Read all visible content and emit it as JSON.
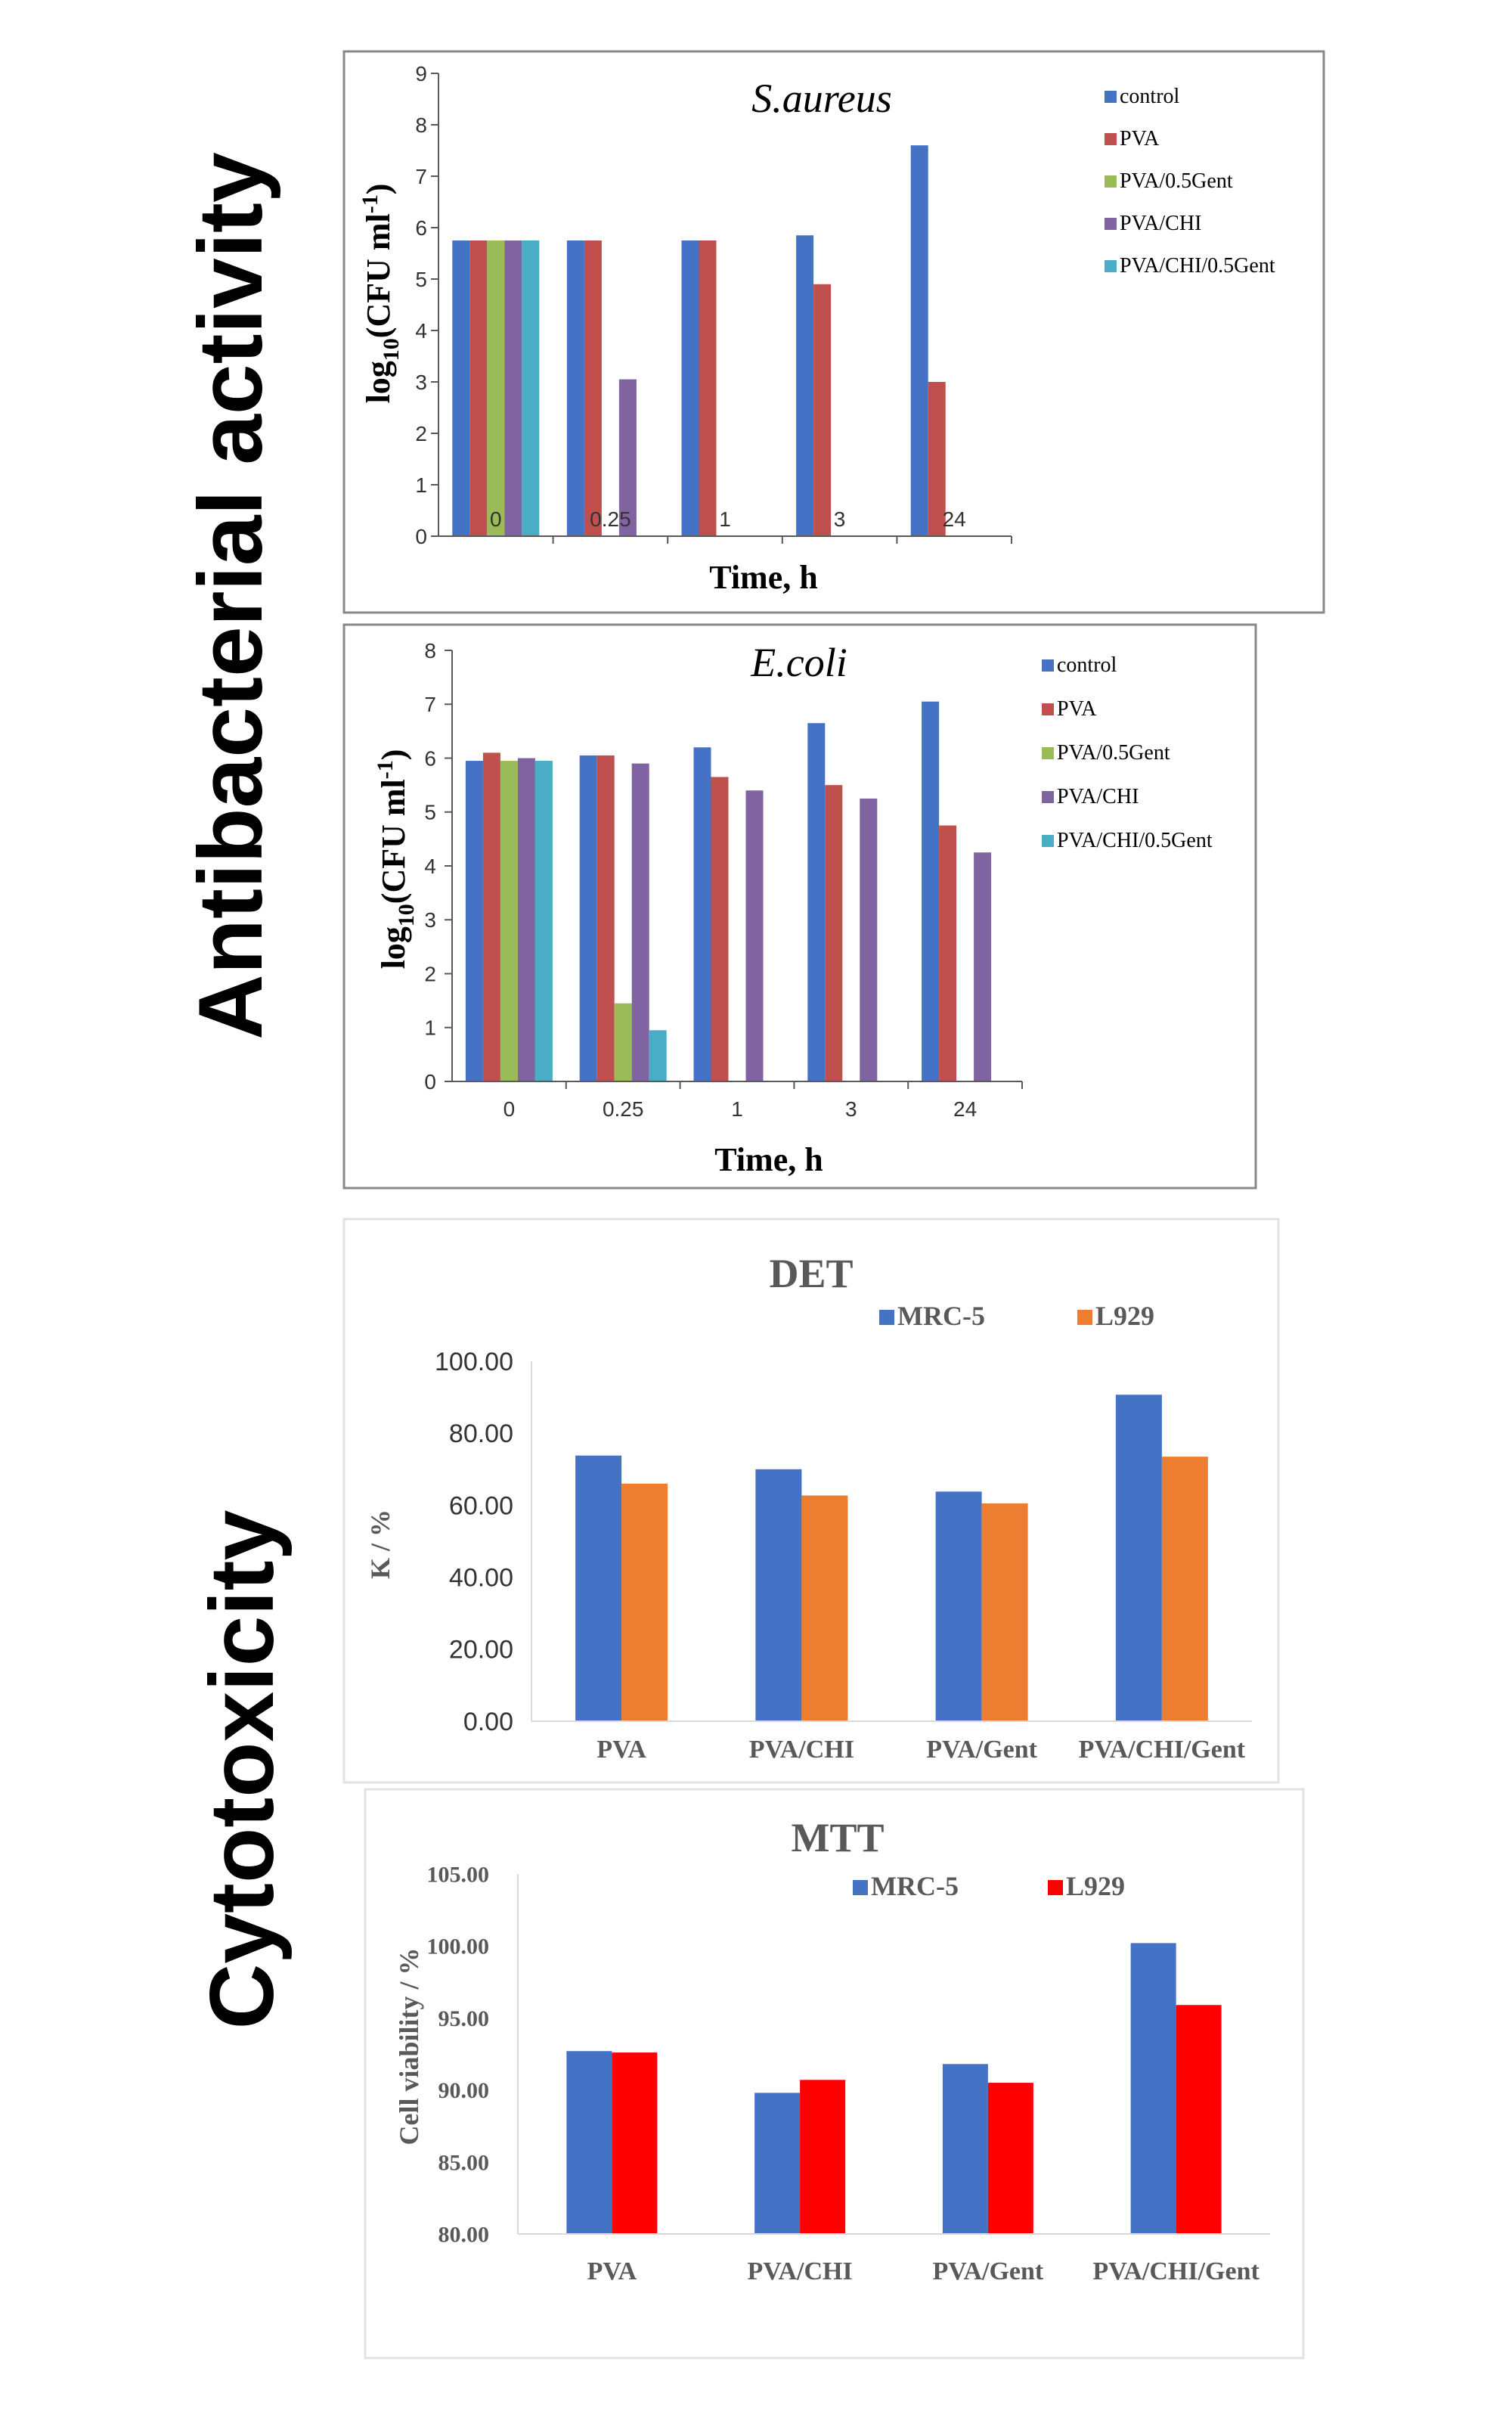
{
  "side_labels": {
    "antibacterial": "Antibacterial activity",
    "cytotoxicity": "Cytotoxicity"
  },
  "colors": {
    "control": "#4472C4",
    "PVA": "#C0504D",
    "PVA/0.5Gent": "#9BBB59",
    "PVA/CHI": "#8064A2",
    "PVA/CHI/0.5Gent": "#4BACC6",
    "MRC-5": "#4472C4",
    "L929_det": "#ED7D31",
    "L929_mtt": "#FF0000"
  },
  "chart_data": [
    {
      "id": "saureus",
      "type": "bar",
      "title": "S.aureus",
      "xlabel": "Time, h",
      "ylabel_main": "log",
      "ylabel_sub": "10",
      "ylabel_rest": "(CFU ml",
      "ylabel_sup": "-1",
      "ylabel_end": ")",
      "categories": [
        "0",
        "0.25",
        "1",
        "3",
        "24"
      ],
      "ylim": [
        0,
        9
      ],
      "yticks": [
        "0",
        "1",
        "2",
        "3",
        "4",
        "5",
        "6",
        "7",
        "8",
        "9"
      ],
      "series": [
        {
          "name": "control",
          "values": [
            5.75,
            5.75,
            5.75,
            5.85,
            7.6
          ]
        },
        {
          "name": "PVA",
          "values": [
            5.75,
            5.75,
            5.75,
            4.9,
            3.0
          ]
        },
        {
          "name": "PVA/0.5Gent",
          "values": [
            5.75,
            0,
            0,
            0,
            0
          ]
        },
        {
          "name": "PVA/CHI",
          "values": [
            5.75,
            3.05,
            0,
            0,
            0
          ]
        },
        {
          "name": "PVA/CHI/0.5Gent",
          "values": [
            5.75,
            0,
            0,
            0,
            0
          ]
        }
      ]
    },
    {
      "id": "ecoli",
      "type": "bar",
      "title": "E.coli",
      "xlabel": "Time, h",
      "ylabel_main": "log",
      "ylabel_sub": "10",
      "ylabel_rest": "(CFU ml",
      "ylabel_sup": "-1",
      "ylabel_end": ")",
      "categories": [
        "0",
        "0.25",
        "1",
        "3",
        "24"
      ],
      "ylim": [
        0,
        8
      ],
      "yticks": [
        "0",
        "1",
        "2",
        "3",
        "4",
        "5",
        "6",
        "7",
        "8"
      ],
      "series": [
        {
          "name": "control",
          "values": [
            5.95,
            6.05,
            6.2,
            6.65,
            7.05
          ]
        },
        {
          "name": "PVA",
          "values": [
            6.1,
            6.05,
            5.65,
            5.5,
            4.75
          ]
        },
        {
          "name": "PVA/0.5Gent",
          "values": [
            5.95,
            1.45,
            0,
            0,
            0
          ]
        },
        {
          "name": "PVA/CHI",
          "values": [
            6.0,
            5.9,
            5.4,
            5.25,
            4.25
          ]
        },
        {
          "name": "PVA/CHI/0.5Gent",
          "values": [
            5.95,
            0.95,
            0,
            0,
            0
          ]
        }
      ]
    },
    {
      "id": "det",
      "type": "bar",
      "title": "DET",
      "ylabel": "K / %",
      "categories": [
        "PVA",
        "PVA/CHI",
        "PVA/Gent",
        "PVA/CHI/Gent"
      ],
      "ylim": [
        0,
        100
      ],
      "yticks": [
        "0.00",
        "20.00",
        "40.00",
        "60.00",
        "80.00",
        "100.00"
      ],
      "series": [
        {
          "name": "MRC-5",
          "values": [
            73.8,
            70.0,
            63.8,
            90.7
          ]
        },
        {
          "name": "L929",
          "values": [
            66.0,
            62.7,
            60.5,
            73.5
          ]
        }
      ]
    },
    {
      "id": "mtt",
      "type": "bar",
      "title": "MTT",
      "ylabel": "Cell viability / %",
      "categories": [
        "PVA",
        "PVA/CHI",
        "PVA/Gent",
        "PVA/CHI/Gent"
      ],
      "ylim": [
        80,
        105
      ],
      "yticks": [
        "80.00",
        "85.00",
        "90.00",
        "95.00",
        "100.00",
        "105.00"
      ],
      "series": [
        {
          "name": "MRC-5",
          "values": [
            92.7,
            89.8,
            91.8,
            100.2
          ]
        },
        {
          "name": "L929",
          "values": [
            92.6,
            90.7,
            90.5,
            95.9
          ]
        }
      ]
    }
  ]
}
